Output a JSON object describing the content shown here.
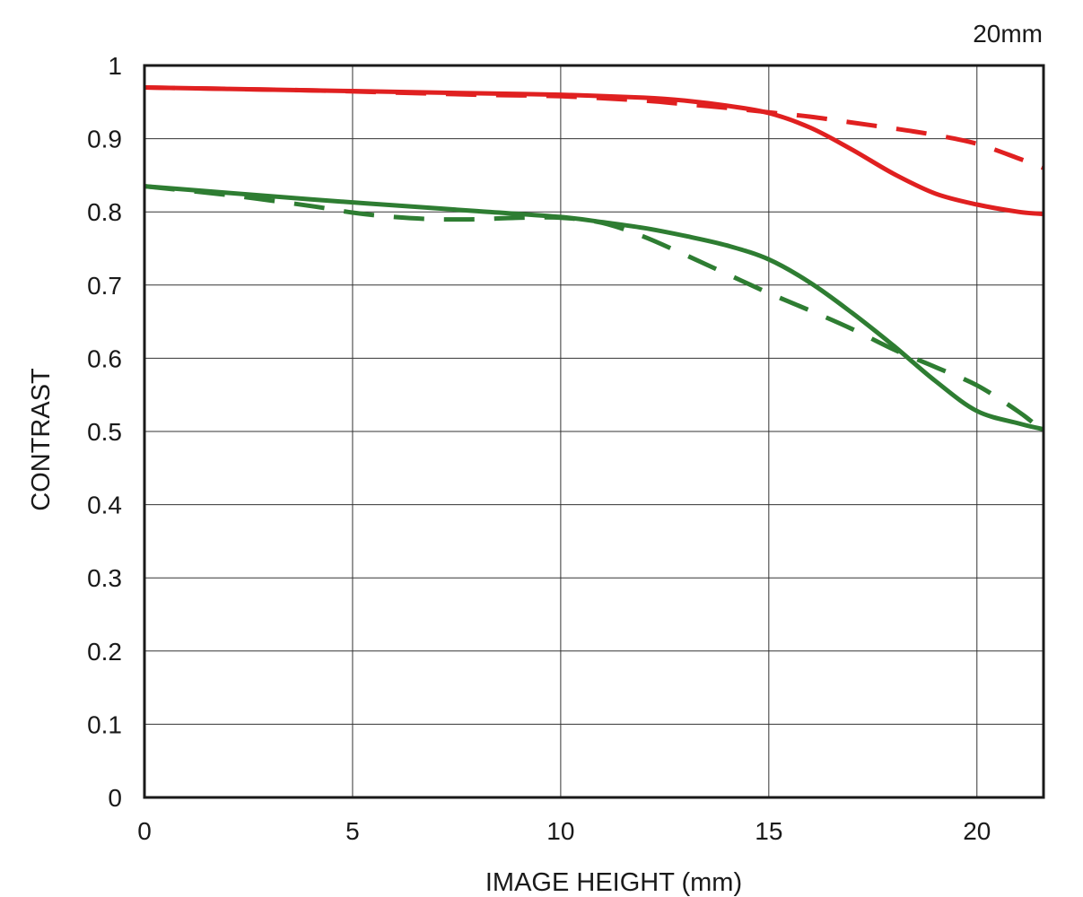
{
  "chart_data": {
    "type": "line",
    "title": "",
    "corner_label": "20mm",
    "xlabel": "IMAGE HEIGHT (mm)",
    "ylabel": "CONTRAST",
    "xlim": [
      0,
      21.6
    ],
    "ylim": [
      0,
      1
    ],
    "xticks": [
      0,
      5,
      10,
      15,
      20
    ],
    "xtick_labels": [
      "0",
      "5",
      "10",
      "15",
      "20"
    ],
    "yticks": [
      0,
      0.1,
      0.2,
      0.3,
      0.4,
      0.5,
      0.6,
      0.7,
      0.8,
      0.9,
      1
    ],
    "ytick_labels": [
      "0",
      "0.1",
      "0.2",
      "0.3",
      "0.4",
      "0.5",
      "0.6",
      "0.7",
      "0.8",
      "0.9",
      "1"
    ],
    "grid": true,
    "legend": "none",
    "series": [
      {
        "color": "#e02020",
        "style": "solid",
        "x": [
          0,
          2,
          4,
          6,
          8,
          10,
          12,
          13,
          14,
          15,
          16,
          17,
          18,
          19,
          20,
          21,
          21.6
        ],
        "y": [
          0.97,
          0.968,
          0.966,
          0.964,
          0.962,
          0.96,
          0.956,
          0.952,
          0.945,
          0.935,
          0.915,
          0.885,
          0.852,
          0.825,
          0.81,
          0.8,
          0.797
        ]
      },
      {
        "color": "#e02020",
        "style": "dashed",
        "x": [
          0,
          2,
          4,
          6,
          8,
          10,
          12,
          13,
          14,
          15,
          16,
          17,
          18,
          19,
          20,
          21,
          21.6
        ],
        "y": [
          0.97,
          0.968,
          0.966,
          0.963,
          0.96,
          0.958,
          0.952,
          0.947,
          0.942,
          0.936,
          0.93,
          0.922,
          0.914,
          0.905,
          0.893,
          0.873,
          0.86
        ]
      },
      {
        "color": "#2e7d32",
        "style": "solid",
        "x": [
          0,
          2,
          4,
          6,
          8,
          10,
          11,
          12,
          13,
          14,
          15,
          16,
          17,
          18,
          19,
          20,
          21,
          21.6
        ],
        "y": [
          0.835,
          0.826,
          0.817,
          0.809,
          0.801,
          0.793,
          0.786,
          0.778,
          0.767,
          0.754,
          0.735,
          0.703,
          0.662,
          0.617,
          0.569,
          0.528,
          0.511,
          0.503
        ]
      },
      {
        "color": "#2e7d32",
        "style": "dashed",
        "x": [
          0,
          2,
          4,
          5,
          6,
          7,
          8,
          9,
          10,
          11,
          12,
          13,
          14,
          15,
          16,
          17,
          18,
          19,
          20,
          21,
          21.6
        ],
        "y": [
          0.835,
          0.823,
          0.808,
          0.799,
          0.793,
          0.79,
          0.79,
          0.792,
          0.792,
          0.785,
          0.766,
          0.741,
          0.715,
          0.689,
          0.665,
          0.64,
          0.612,
          0.588,
          0.563,
          0.527,
          0.5
        ]
      }
    ]
  }
}
